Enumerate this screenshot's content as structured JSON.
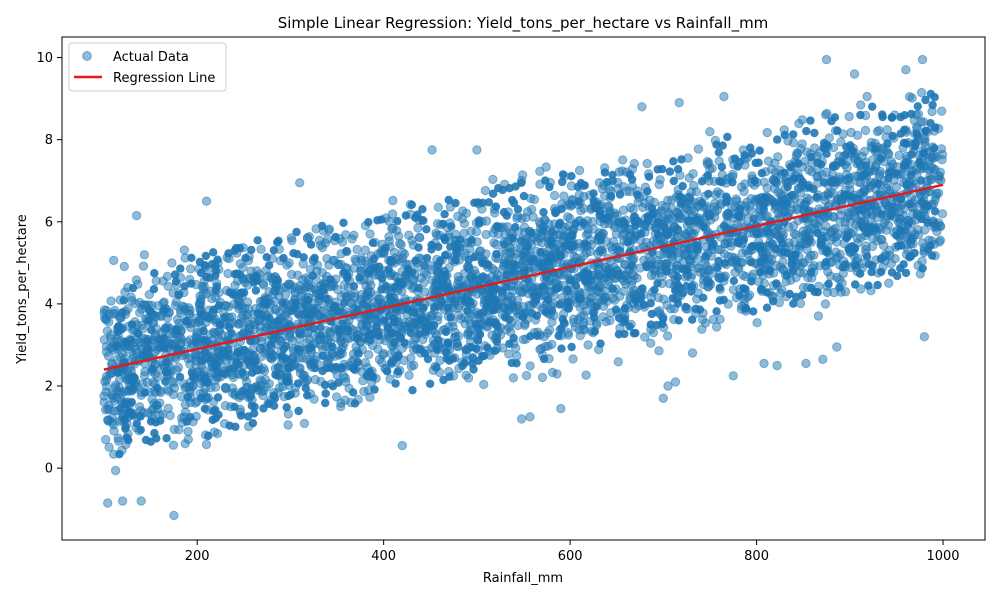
{
  "chart_data": {
    "type": "scatter",
    "title": "Simple Linear Regression: Yield_tons_per_hectare vs Rainfall_mm",
    "xlabel": "Rainfall_mm",
    "ylabel": "Yield_tons_per_hectare",
    "xlim": [
      55,
      1045
    ],
    "ylim": [
      -1.75,
      10.5
    ],
    "xticks": [
      200,
      400,
      600,
      800,
      1000
    ],
    "yticks": [
      0,
      2,
      4,
      6,
      8,
      10
    ],
    "x_tick_labels": [
      "200",
      "400",
      "600",
      "800",
      "1000"
    ],
    "y_tick_labels": [
      "0",
      "2",
      "4",
      "6",
      "8",
      "10"
    ],
    "grid": false,
    "legend_position": "top-left",
    "series": [
      {
        "name": "Actual Data",
        "kind": "scatter",
        "color": "#1f77b4",
        "alpha": 0.5,
        "x_range": [
          100,
          1000
        ],
        "band_low": [
          -0.6,
          4.0
        ],
        "band_high": [
          5.4,
          9.8
        ],
        "sample_points": [
          {
            "x": 175,
            "y": -1.15
          },
          {
            "x": 104,
            "y": -0.85
          },
          {
            "x": 120,
            "y": -0.8
          },
          {
            "x": 140,
            "y": -0.8
          },
          {
            "x": 135,
            "y": 6.15
          },
          {
            "x": 210,
            "y": 6.5
          },
          {
            "x": 310,
            "y": 6.95
          },
          {
            "x": 420,
            "y": 0.55
          },
          {
            "x": 452,
            "y": 7.75
          },
          {
            "x": 500,
            "y": 7.75
          },
          {
            "x": 548,
            "y": 1.2
          },
          {
            "x": 557,
            "y": 1.25
          },
          {
            "x": 590,
            "y": 1.45
          },
          {
            "x": 700,
            "y": 1.7
          },
          {
            "x": 705,
            "y": 2.0
          },
          {
            "x": 713,
            "y": 2.1
          },
          {
            "x": 677,
            "y": 8.8
          },
          {
            "x": 717,
            "y": 8.9
          },
          {
            "x": 765,
            "y": 9.05
          },
          {
            "x": 775,
            "y": 2.25
          },
          {
            "x": 808,
            "y": 2.55
          },
          {
            "x": 822,
            "y": 2.5
          },
          {
            "x": 853,
            "y": 2.55
          },
          {
            "x": 871,
            "y": 2.65
          },
          {
            "x": 886,
            "y": 2.95
          },
          {
            "x": 875,
            "y": 9.95
          },
          {
            "x": 980,
            "y": 3.2
          },
          {
            "x": 905,
            "y": 9.6
          },
          {
            "x": 978,
            "y": 9.95
          },
          {
            "x": 960,
            "y": 9.7
          }
        ]
      },
      {
        "name": "Regression Line",
        "kind": "line",
        "color": "#e41a1c",
        "x": [
          100,
          1000
        ],
        "y": [
          2.4,
          6.9
        ]
      }
    ]
  }
}
